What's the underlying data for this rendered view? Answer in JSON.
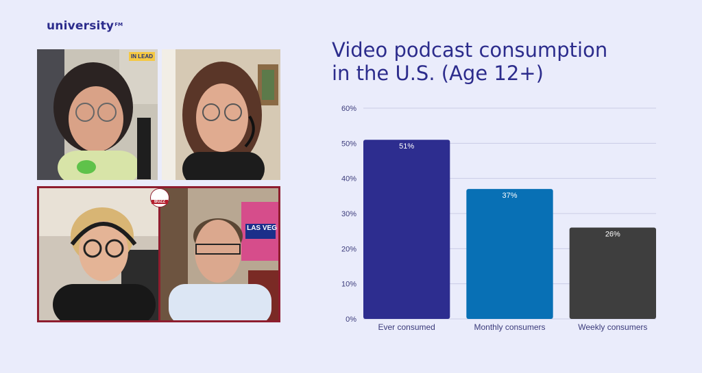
{
  "brand": {
    "logo_text": "university",
    "logo_mark": "FM"
  },
  "video_panel": {
    "participants": [
      {
        "name": "participant-top-left",
        "badge": "IN LEAD"
      },
      {
        "name": "participant-top-right",
        "badge": ""
      },
      {
        "name": "participant-bottom-left",
        "badge": ""
      },
      {
        "name": "participant-bottom-right",
        "badge": "BUZZ",
        "poster": "LAS VEG"
      }
    ]
  },
  "chart_data": {
    "type": "bar",
    "title_lines": [
      "Video podcast consumption",
      "in the U.S. (Age 12+)"
    ],
    "categories": [
      "Ever consumed",
      "Monthly consumers",
      "Weekly consumers"
    ],
    "values": [
      51,
      37,
      26
    ],
    "value_labels": [
      "51%",
      "37%",
      "26%"
    ],
    "colors": [
      "#2d2d8f",
      "#0870b5",
      "#3e3e3e"
    ],
    "yticks": [
      "0%",
      "10%",
      "20%",
      "30%",
      "40%",
      "50%",
      "60%"
    ],
    "ylim": [
      0,
      60
    ],
    "grid": true,
    "legend": "none"
  }
}
